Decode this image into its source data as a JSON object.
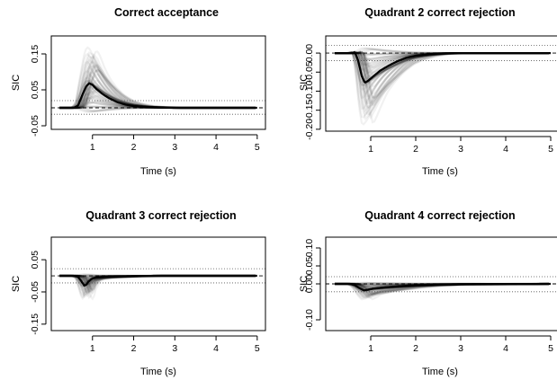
{
  "chart_data": [
    {
      "type": "line",
      "title": "Correct acceptance",
      "xlabel": "Time (s)",
      "ylabel": "SIC",
      "xlim": [
        0.0,
        5.2
      ],
      "ylim": [
        -0.06,
        0.2
      ],
      "x_ticks": [
        "1",
        "2",
        "3",
        "4",
        "5"
      ],
      "y_ticks": [
        "-0.05",
        "0.05",
        "0.15"
      ],
      "y_tick_values": [
        -0.05,
        0.05,
        0.15
      ],
      "ref_lines": {
        "zero": 0.0,
        "upper": 0.02,
        "lower": -0.018
      },
      "series": [
        {
          "x": [
            0.2,
            0.55,
            0.65,
            0.75,
            0.85,
            0.92,
            1.0,
            1.1,
            1.25,
            1.4,
            1.6,
            1.8,
            2.0,
            2.3,
            2.6,
            3.0,
            3.5,
            5.0
          ],
          "values": [
            0.0,
            0.0,
            0.006,
            0.035,
            0.06,
            0.068,
            0.064,
            0.052,
            0.038,
            0.027,
            0.016,
            0.009,
            0.005,
            0.002,
            0.001,
            0.0,
            0.0,
            0.0
          ]
        }
      ]
    },
    {
      "type": "line",
      "title": "Quadrant 2 correct rejection",
      "xlabel": "Time (s)",
      "ylabel": "SIC",
      "xlim": [
        0.0,
        5.2
      ],
      "ylim": [
        -0.205,
        0.045
      ],
      "x_ticks": [
        "1",
        "2",
        "3",
        "4",
        "5"
      ],
      "y_ticks": [
        "-0.20",
        "-0.15",
        "-0.10",
        "-0.05",
        "0.00"
      ],
      "y_tick_values": [
        -0.2,
        -0.15,
        -0.1,
        -0.05,
        0.0
      ],
      "ref_lines": {
        "zero": 0.0,
        "upper": 0.02,
        "lower": -0.02
      },
      "series": [
        {
          "x": [
            0.2,
            0.55,
            0.65,
            0.72,
            0.8,
            0.87,
            0.95,
            1.05,
            1.2,
            1.4,
            1.6,
            1.8,
            2.0,
            2.3,
            2.6,
            3.0,
            3.5,
            5.0
          ],
          "values": [
            0.0,
            0.0,
            0.002,
            -0.02,
            -0.06,
            -0.078,
            -0.072,
            -0.062,
            -0.047,
            -0.033,
            -0.021,
            -0.012,
            -0.007,
            -0.003,
            -0.001,
            0.0,
            0.0,
            0.0
          ]
        }
      ]
    },
    {
      "type": "line",
      "title": "Quadrant 3 correct rejection",
      "xlabel": "Time (s)",
      "ylabel": "SIC",
      "xlim": [
        0.0,
        5.2
      ],
      "ylim": [
        -0.17,
        0.12
      ],
      "x_ticks": [
        "1",
        "2",
        "3",
        "4",
        "5"
      ],
      "y_ticks": [
        "-0.15",
        "-0.05",
        "0.05"
      ],
      "y_tick_values": [
        -0.15,
        -0.05,
        0.05
      ],
      "ref_lines": {
        "zero": 0.0,
        "upper": 0.022,
        "lower": -0.022
      },
      "series": [
        {
          "x": [
            0.2,
            0.55,
            0.65,
            0.72,
            0.8,
            0.85,
            0.9,
            1.0,
            1.1,
            1.3,
            1.6,
            2.0,
            2.5,
            3.0,
            5.0
          ],
          "values": [
            0.0,
            0.0,
            -0.003,
            -0.015,
            -0.03,
            -0.028,
            -0.018,
            -0.008,
            -0.005,
            -0.003,
            -0.002,
            -0.001,
            0.0,
            0.0,
            0.0
          ]
        }
      ]
    },
    {
      "type": "line",
      "title": "Quadrant 4 correct rejection",
      "xlabel": "Time (s)",
      "ylabel": "SIC",
      "xlim": [
        0.0,
        5.2
      ],
      "ylim": [
        -0.13,
        0.13
      ],
      "x_ticks": [
        "1",
        "2",
        "3",
        "4",
        "5"
      ],
      "y_ticks": [
        "-0.10",
        "0.00",
        "0.05",
        "0.10"
      ],
      "y_tick_values": [
        -0.1,
        0.0,
        0.05,
        0.1
      ],
      "ref_lines": {
        "zero": 0.0,
        "upper": 0.02,
        "lower": -0.022
      },
      "series": [
        {
          "x": [
            0.2,
            0.55,
            0.65,
            0.75,
            0.85,
            0.95,
            1.05,
            1.3,
            1.6,
            2.0,
            2.5,
            3.0,
            5.0
          ],
          "values": [
            0.0,
            0.0,
            -0.004,
            -0.012,
            -0.018,
            -0.016,
            -0.013,
            -0.01,
            -0.007,
            -0.004,
            -0.002,
            -0.001,
            0.0
          ]
        }
      ]
    }
  ]
}
